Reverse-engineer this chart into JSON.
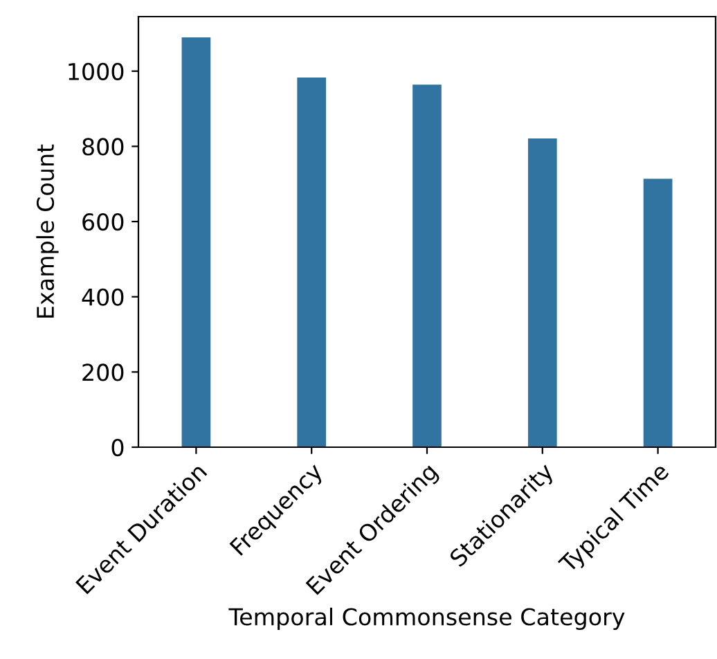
{
  "chart_data": {
    "type": "bar",
    "xlabel": "Temporal Commonsense Category",
    "ylabel": "Example Count",
    "categories": [
      "Event Duration",
      "Frequency",
      "Event Ordering",
      "Stationarity",
      "Typical Time"
    ],
    "values": [
      1090,
      983,
      964,
      821,
      714
    ],
    "color": "#3274a1",
    "ylim": [
      0,
      1145
    ],
    "yticks": [
      0,
      200,
      400,
      600,
      800,
      1000
    ],
    "grid": false
  }
}
